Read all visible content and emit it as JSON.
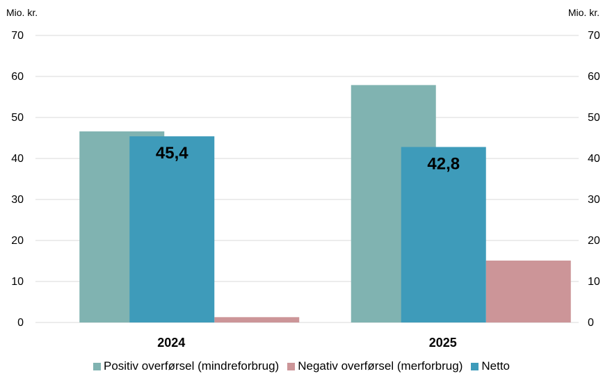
{
  "chart_data": {
    "type": "bar",
    "y_unit_left": "Mio. kr.",
    "y_unit_right": "Mio. kr.",
    "ylim": [
      0,
      70
    ],
    "yticks": [
      0,
      10,
      20,
      30,
      40,
      50,
      60,
      70
    ],
    "grid": true,
    "categories": [
      "2024",
      "2025"
    ],
    "series": [
      {
        "name": "Positiv overførsel (mindreforbrug)",
        "color": "#80b3b1",
        "values": [
          46.6,
          57.9
        ]
      },
      {
        "name": "Negativ overførsel (merforbrug)",
        "color": "#cc9598",
        "values": [
          1.3,
          15.1
        ]
      },
      {
        "name": "Netto",
        "color": "#3e9bba",
        "values": [
          45.4,
          42.8
        ]
      }
    ],
    "data_labels": [
      "45,4",
      "42,8"
    ],
    "legend_position": "bottom"
  }
}
